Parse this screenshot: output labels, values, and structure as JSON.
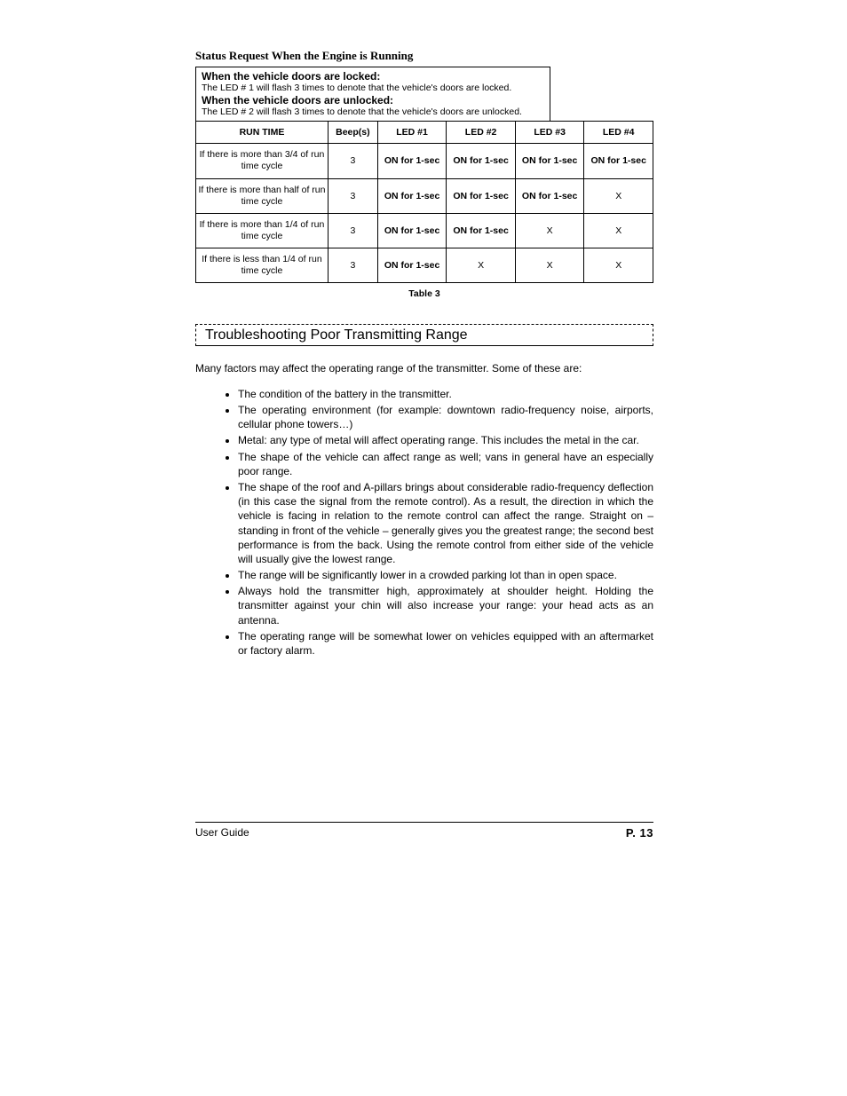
{
  "heading": "Status Request When the Engine is Running",
  "infobox": {
    "locked_title": "When the vehicle doors are locked:",
    "locked_desc": "The LED # 1 will flash 3 times to denote that the vehicle's doors are locked.",
    "unlocked_title": "When the vehicle doors are unlocked:",
    "unlocked_desc": "The LED # 2 will flash 3 times to denote that the vehicle's doors are unlocked."
  },
  "table": {
    "headers": [
      "RUN TIME",
      "Beep(s)",
      "LED #1",
      "LED #2",
      "LED #3",
      "LED #4"
    ],
    "rows": [
      {
        "rt": "If there is more than 3/4 of run time cycle",
        "beeps": "3",
        "l1": "ON for 1-sec",
        "l2": "ON for 1-sec",
        "l3": "ON for 1-sec",
        "l4": "ON for 1-sec"
      },
      {
        "rt": "If there is more than half of run time cycle",
        "beeps": "3",
        "l1": "ON for 1-sec",
        "l2": "ON for 1-sec",
        "l3": "ON for 1-sec",
        "l4": "X"
      },
      {
        "rt": "If there is more than 1/4 of run time cycle",
        "beeps": "3",
        "l1": "ON for 1-sec",
        "l2": "ON for 1-sec",
        "l3": "X",
        "l4": "X"
      },
      {
        "rt": "If there is less than 1/4 of run time cycle",
        "beeps": "3",
        "l1": "ON for 1-sec",
        "l2": "X",
        "l3": "X",
        "l4": "X"
      }
    ],
    "caption": "Table 3"
  },
  "troubleshoot": {
    "title": "Troubleshooting Poor Transmitting Range",
    "intro": "Many factors may affect the operating range of the transmitter.  Some of these are:",
    "items": [
      "The condition of the battery in the transmitter.",
      "The operating environment (for example: downtown radio-frequency noise, airports, cellular phone towers…)",
      "Metal: any type of metal will affect operating range. This includes the metal in the car.",
      "The shape of the vehicle can affect range as well; vans in general have an especially poor range.",
      "The shape of the roof and A-pillars brings about considerable radio-frequency deflection (in this case the signal from the remote control). As a result, the direction in which the vehicle is facing in relation to the remote control can affect the range. Straight on – standing in front of the vehicle – generally gives you the greatest range; the second best performance is from the back. Using the remote control from either side of the vehicle will usually give the lowest range.",
      "The range will be significantly lower in a crowded parking lot than in open space.",
      "Always hold the transmitter high, approximately at shoulder height. Holding the transmitter against your chin will also increase your range: your head acts as an antenna.",
      "The operating range will be somewhat lower on vehicles equipped with an aftermarket or factory alarm."
    ]
  },
  "footer": {
    "left": "User Guide",
    "right": "P. 13"
  }
}
